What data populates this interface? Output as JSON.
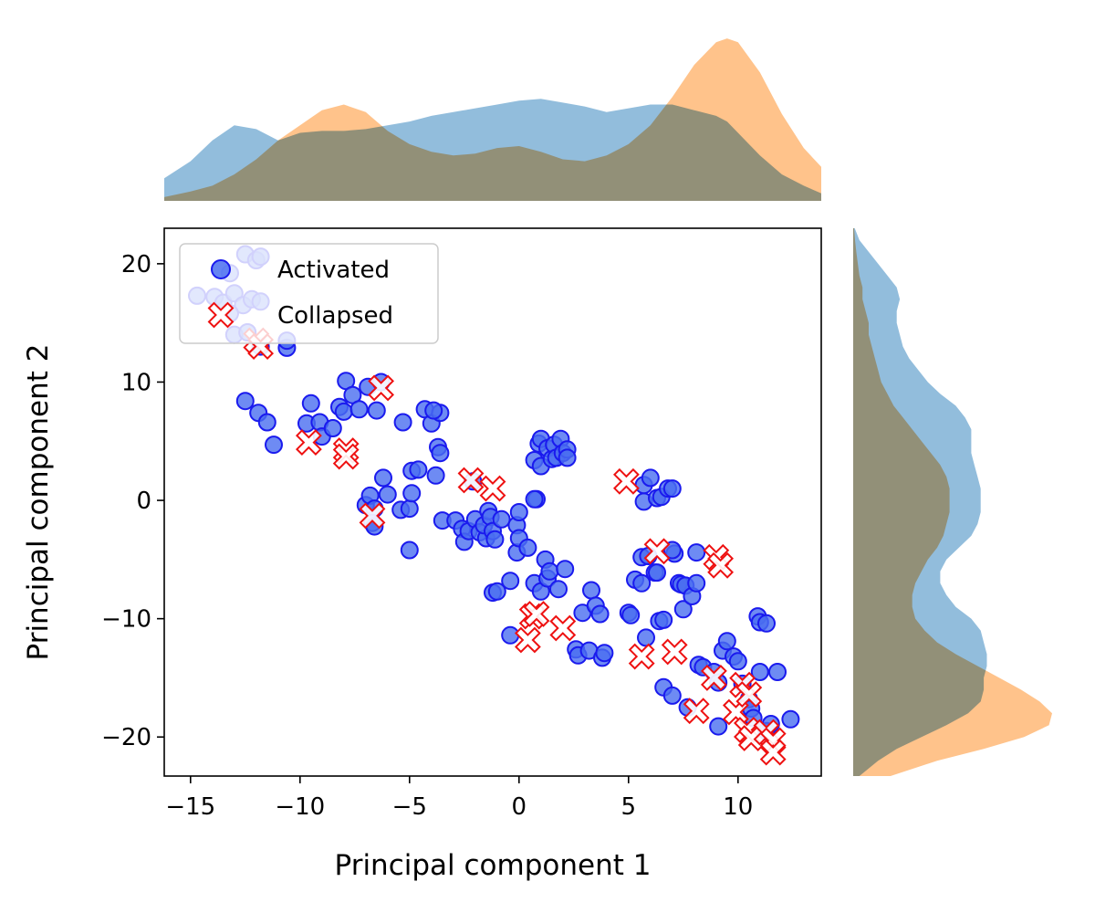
{
  "chart_data": {
    "type": "scatter",
    "xlabel": "Principal component 1",
    "ylabel": "Principal component 2",
    "xlim": [
      -16.2,
      13.8
    ],
    "ylim": [
      -23.3,
      23.0
    ],
    "xticks": [
      -15,
      -10,
      -5,
      0,
      5,
      10
    ],
    "yticks": [
      -20,
      -10,
      0,
      10,
      20
    ],
    "tick_labels_x": [
      "−15",
      "−10",
      "−5",
      "0",
      "5",
      "10"
    ],
    "tick_labels_y": [
      "−20",
      "−10",
      "0",
      "10",
      "20"
    ],
    "grid": false,
    "legend_position": "top-left",
    "colors": {
      "activated_fill": "#4a6ef0",
      "activated_edge": "#1a1aee",
      "collapsed_fill": "#ffffff",
      "collapsed_edge": "#ee1111",
      "kde_activated": "#7fb1d6",
      "kde_collapsed": "#ffb877",
      "kde_overlap": "#c69c74"
    },
    "series": [
      {
        "name": "Activated",
        "marker": "circle",
        "points": [
          [
            -12.5,
            20.8
          ],
          [
            -12.0,
            20.3
          ],
          [
            -11.8,
            20.6
          ],
          [
            -13.2,
            19.2
          ],
          [
            -14.7,
            17.3
          ],
          [
            -13.9,
            17.2
          ],
          [
            -13.5,
            16.7
          ],
          [
            -13.0,
            17.5
          ],
          [
            -12.6,
            16.5
          ],
          [
            -12.2,
            17.0
          ],
          [
            -11.8,
            16.8
          ],
          [
            -13.2,
            15.8
          ],
          [
            -13.0,
            14.0
          ],
          [
            -12.4,
            14.2
          ],
          [
            -11.8,
            13.0
          ],
          [
            -10.6,
            12.9
          ],
          [
            -10.6,
            13.5
          ],
          [
            -12.5,
            8.4
          ],
          [
            -11.9,
            7.4
          ],
          [
            -11.5,
            6.6
          ],
          [
            -11.2,
            4.7
          ],
          [
            -9.5,
            8.2
          ],
          [
            -9.7,
            6.5
          ],
          [
            -9.1,
            6.6
          ],
          [
            -9.0,
            5.4
          ],
          [
            -8.5,
            6.1
          ],
          [
            -8.2,
            7.9
          ],
          [
            -8.0,
            7.5
          ],
          [
            -7.9,
            10.1
          ],
          [
            -7.6,
            8.9
          ],
          [
            -7.3,
            7.7
          ],
          [
            -6.9,
            9.6
          ],
          [
            -6.3,
            10.0
          ],
          [
            -6.5,
            7.6
          ],
          [
            -5.3,
            6.6
          ],
          [
            -4.3,
            7.7
          ],
          [
            -4.0,
            6.5
          ],
          [
            -3.6,
            7.4
          ],
          [
            -3.9,
            7.6
          ],
          [
            -3.7,
            4.5
          ],
          [
            -3.6,
            4.0
          ],
          [
            -3.8,
            2.1
          ],
          [
            -7.0,
            -0.4
          ],
          [
            -6.8,
            0.4
          ],
          [
            -6.6,
            -0.7
          ],
          [
            -6.7,
            -1.9
          ],
          [
            -6.6,
            -2.2
          ],
          [
            -6.2,
            1.9
          ],
          [
            -6.0,
            0.5
          ],
          [
            -5.4,
            -0.8
          ],
          [
            -5.0,
            -0.7
          ],
          [
            -4.9,
            0.6
          ],
          [
            -4.9,
            2.5
          ],
          [
            -4.6,
            2.6
          ],
          [
            -5.0,
            -4.2
          ],
          [
            -3.5,
            -1.7
          ],
          [
            -2.9,
            -1.7
          ],
          [
            -2.6,
            -2.4
          ],
          [
            -2.5,
            -3.5
          ],
          [
            -2.3,
            -2.6
          ],
          [
            -2.1,
            1.6
          ],
          [
            -2.0,
            -1.6
          ],
          [
            -1.8,
            -2.7
          ],
          [
            -1.5,
            -3.2
          ],
          [
            -1.6,
            -2.1
          ],
          [
            -1.4,
            -0.9
          ],
          [
            -1.3,
            -1.4
          ],
          [
            -1.2,
            -2.6
          ],
          [
            -1.1,
            -3.3
          ],
          [
            -0.8,
            -1.6
          ],
          [
            -1.2,
            -7.8
          ],
          [
            -1.0,
            -7.7
          ],
          [
            -0.4,
            -6.8
          ],
          [
            -0.4,
            -11.4
          ],
          [
            -0.1,
            -2.1
          ],
          [
            0.0,
            -1.0
          ],
          [
            -0.1,
            -4.4
          ],
          [
            0.0,
            -3.2
          ],
          [
            0.4,
            -4.0
          ],
          [
            0.7,
            -7.0
          ],
          [
            0.8,
            0.1
          ],
          [
            0.7,
            0.1
          ],
          [
            0.7,
            3.4
          ],
          [
            0.9,
            4.8
          ],
          [
            1.0,
            5.2
          ],
          [
            1.0,
            2.9
          ],
          [
            1.0,
            -7.7
          ],
          [
            1.2,
            -5.0
          ],
          [
            1.3,
            -6.6
          ],
          [
            1.3,
            4.4
          ],
          [
            1.4,
            -6.0
          ],
          [
            1.5,
            3.5
          ],
          [
            1.6,
            4.7
          ],
          [
            1.7,
            3.6
          ],
          [
            1.9,
            5.2
          ],
          [
            2.0,
            4.0
          ],
          [
            2.2,
            4.3
          ],
          [
            2.2,
            3.6
          ],
          [
            1.8,
            -7.5
          ],
          [
            2.1,
            -5.8
          ],
          [
            2.6,
            -12.6
          ],
          [
            2.7,
            -13.1
          ],
          [
            2.9,
            -9.5
          ],
          [
            3.2,
            -12.7
          ],
          [
            3.3,
            -7.6
          ],
          [
            3.5,
            -8.9
          ],
          [
            3.7,
            -9.6
          ],
          [
            3.8,
            -13.3
          ],
          [
            3.9,
            -12.9
          ],
          [
            5.0,
            -9.5
          ],
          [
            5.1,
            -9.7
          ],
          [
            5.3,
            -6.7
          ],
          [
            5.6,
            -7.0
          ],
          [
            5.6,
            -4.8
          ],
          [
            5.7,
            -0.1
          ],
          [
            5.7,
            1.3
          ],
          [
            5.9,
            -4.7
          ],
          [
            5.8,
            -11.6
          ],
          [
            6.0,
            1.9
          ],
          [
            6.2,
            -6.1
          ],
          [
            6.3,
            -6.1
          ],
          [
            6.3,
            0.2
          ],
          [
            6.4,
            -10.2
          ],
          [
            6.5,
            0.3
          ],
          [
            6.6,
            -10.1
          ],
          [
            6.8,
            1.0
          ],
          [
            7.0,
            1.0
          ],
          [
            7.1,
            -4.5
          ],
          [
            7.0,
            -4.2
          ],
          [
            6.6,
            -15.8
          ],
          [
            7.0,
            -16.5
          ],
          [
            7.3,
            -7.0
          ],
          [
            7.5,
            -9.2
          ],
          [
            7.4,
            -7.1
          ],
          [
            7.6,
            -7.2
          ],
          [
            7.7,
            -17.5
          ],
          [
            7.9,
            -8.1
          ],
          [
            8.1,
            -4.4
          ],
          [
            8.1,
            -7.0
          ],
          [
            8.2,
            -13.9
          ],
          [
            8.4,
            -14.1
          ],
          [
            8.9,
            -14.5
          ],
          [
            9.1,
            -15.4
          ],
          [
            9.1,
            -19.1
          ],
          [
            9.3,
            -12.7
          ],
          [
            9.5,
            -11.9
          ],
          [
            9.8,
            -13.2
          ],
          [
            10.0,
            -13.6
          ],
          [
            10.2,
            -15.5
          ],
          [
            10.5,
            -16.8
          ],
          [
            10.6,
            -17.6
          ],
          [
            10.7,
            -18.4
          ],
          [
            10.9,
            -9.8
          ],
          [
            11.0,
            -14.5
          ],
          [
            11.0,
            -10.3
          ],
          [
            11.3,
            -10.4
          ],
          [
            11.3,
            -19.5
          ],
          [
            11.8,
            -14.5
          ],
          [
            11.5,
            -18.9
          ],
          [
            12.4,
            -18.5
          ]
        ]
      },
      {
        "name": "Collapsed",
        "marker": "x",
        "points": [
          [
            -12.0,
            13.5
          ],
          [
            -11.8,
            13.0
          ],
          [
            -6.3,
            9.5
          ],
          [
            -9.6,
            4.9
          ],
          [
            -7.9,
            4.2
          ],
          [
            -7.9,
            3.7
          ],
          [
            -6.7,
            -1.3
          ],
          [
            -2.2,
            1.7
          ],
          [
            -1.2,
            1.0
          ],
          [
            0.6,
            -9.8
          ],
          [
            0.8,
            -9.6
          ],
          [
            0.4,
            -11.8
          ],
          [
            2.0,
            -10.8
          ],
          [
            4.9,
            1.6
          ],
          [
            6.3,
            -4.3
          ],
          [
            5.6,
            -13.2
          ],
          [
            7.1,
            -12.8
          ],
          [
            8.1,
            -17.8
          ],
          [
            8.9,
            -15.0
          ],
          [
            9.0,
            -4.8
          ],
          [
            9.2,
            -5.5
          ],
          [
            9.9,
            -17.9
          ],
          [
            10.2,
            -15.6
          ],
          [
            10.5,
            -16.4
          ],
          [
            10.4,
            -19.4
          ],
          [
            10.6,
            -20.1
          ],
          [
            11.3,
            -19.6
          ],
          [
            11.6,
            -20.3
          ],
          [
            11.6,
            -21.3
          ]
        ]
      }
    ],
    "marginals": {
      "top_x": [
        -16.2,
        -15.0,
        -14.0,
        -13.0,
        -12.0,
        -11.0,
        -10.0,
        -9.0,
        -8.0,
        -7.0,
        -6.0,
        -5.0,
        -4.0,
        -3.0,
        -2.0,
        -1.0,
        0.0,
        1.0,
        2.0,
        3.0,
        4.0,
        5.0,
        6.0,
        7.0,
        8.0,
        9.0,
        9.5,
        10.0,
        11.0,
        12.0,
        13.0,
        13.8
      ],
      "top_activated": [
        0.012,
        0.021,
        0.032,
        0.04,
        0.038,
        0.032,
        0.036,
        0.037,
        0.037,
        0.038,
        0.04,
        0.042,
        0.045,
        0.047,
        0.049,
        0.051,
        0.053,
        0.054,
        0.052,
        0.05,
        0.047,
        0.049,
        0.051,
        0.051,
        0.048,
        0.045,
        0.042,
        0.036,
        0.024,
        0.014,
        0.008,
        0.004
      ],
      "top_collapsed": [
        0.002,
        0.005,
        0.008,
        0.014,
        0.022,
        0.032,
        0.04,
        0.048,
        0.051,
        0.047,
        0.037,
        0.03,
        0.026,
        0.024,
        0.025,
        0.028,
        0.029,
        0.026,
        0.022,
        0.021,
        0.024,
        0.03,
        0.04,
        0.055,
        0.072,
        0.084,
        0.086,
        0.084,
        0.068,
        0.046,
        0.028,
        0.018
      ],
      "right_y": [
        -23.3,
        -22.0,
        -21.0,
        -20.0,
        -19.0,
        -18.0,
        -17.0,
        -16.0,
        -15.0,
        -14.0,
        -13.0,
        -12.0,
        -11.0,
        -10.0,
        -9.0,
        -8.0,
        -7.0,
        -6.0,
        -5.0,
        -4.0,
        -3.0,
        -2.0,
        -1.0,
        0.0,
        1.0,
        2.0,
        3.0,
        4.0,
        5.0,
        6.0,
        7.0,
        8.0,
        9.0,
        10.0,
        11.0,
        12.0,
        13.0,
        14.0,
        15.0,
        16.0,
        17.0,
        18.0,
        19.0,
        20.0,
        21.0,
        22.0,
        23.0
      ],
      "right_activated": [
        0.002,
        0.008,
        0.014,
        0.022,
        0.03,
        0.037,
        0.041,
        0.042,
        0.042,
        0.043,
        0.043,
        0.042,
        0.041,
        0.038,
        0.033,
        0.03,
        0.028,
        0.028,
        0.03,
        0.034,
        0.038,
        0.04,
        0.041,
        0.041,
        0.041,
        0.04,
        0.039,
        0.038,
        0.038,
        0.038,
        0.036,
        0.033,
        0.028,
        0.024,
        0.021,
        0.018,
        0.016,
        0.015,
        0.014,
        0.014,
        0.015,
        0.014,
        0.011,
        0.008,
        0.005,
        0.002,
        0.0005
      ],
      "right_collapsed": [
        0.012,
        0.027,
        0.042,
        0.055,
        0.063,
        0.064,
        0.06,
        0.054,
        0.047,
        0.04,
        0.033,
        0.027,
        0.023,
        0.02,
        0.019,
        0.019,
        0.02,
        0.022,
        0.024,
        0.027,
        0.029,
        0.03,
        0.031,
        0.031,
        0.031,
        0.03,
        0.028,
        0.025,
        0.022,
        0.019,
        0.016,
        0.013,
        0.011,
        0.009,
        0.008,
        0.007,
        0.006,
        0.005,
        0.005,
        0.004,
        0.003,
        0.003,
        0.002,
        0.0015,
        0.001,
        0.0006,
        0.0003
      ]
    }
  }
}
